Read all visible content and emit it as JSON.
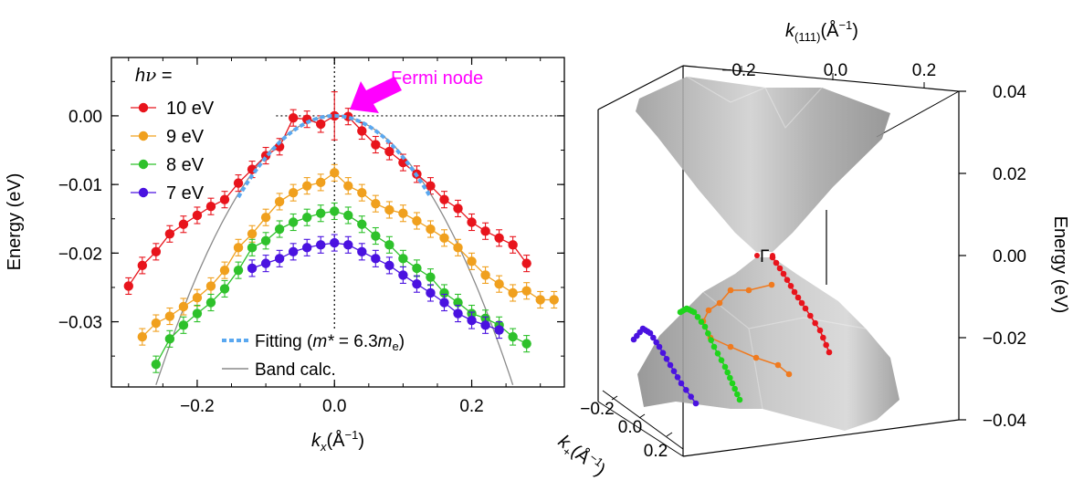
{
  "chart_data": [
    {
      "type": "scatter",
      "xlabel": "k_x(Å⁻¹)",
      "ylabel": "Energy (eV)",
      "xlim": [
        -0.325,
        0.335
      ],
      "ylim": [
        -0.0395,
        0.0085
      ],
      "xticks": [
        -0.2,
        0.0,
        0.2
      ],
      "xtick_labels": [
        "−0.2",
        "0.0",
        "0.2"
      ],
      "yticks": [
        0.0,
        -0.01,
        -0.02,
        -0.03
      ],
      "ytick_labels": [
        "0.00",
        "−0.01",
        "−0.02",
        "−0.03"
      ],
      "legend_title": "hν =",
      "annotation": {
        "text": "Fermi node",
        "color": "#ff00ff",
        "x": 0.0,
        "y": 0.0
      },
      "series": [
        {
          "name": "10 eV",
          "color": "#e8141c",
          "x": [
            -0.3,
            -0.28,
            -0.26,
            -0.24,
            -0.22,
            -0.2,
            -0.18,
            -0.16,
            -0.14,
            -0.12,
            -0.1,
            -0.08,
            -0.06,
            -0.04,
            -0.02,
            0.0,
            0.02,
            0.04,
            0.06,
            0.08,
            0.1,
            0.12,
            0.14,
            0.16,
            0.18,
            0.2,
            0.22,
            0.24,
            0.26,
            0.28
          ],
          "y": [
            -0.0248,
            -0.0218,
            -0.0198,
            -0.0172,
            -0.0158,
            -0.0145,
            -0.0132,
            -0.0122,
            -0.0098,
            -0.0078,
            -0.0058,
            -0.0045,
            -0.0003,
            -0.0005,
            -0.0012,
            0.0,
            -0.0001,
            -0.0022,
            -0.0042,
            -0.0052,
            -0.0068,
            -0.0085,
            -0.0102,
            -0.0122,
            -0.0135,
            -0.0155,
            -0.0168,
            -0.0178,
            -0.0188,
            -0.0215
          ],
          "err": 0.0012,
          "err_center": 0.0035
        },
        {
          "name": "9 eV",
          "color": "#f0a01e",
          "x": [
            -0.28,
            -0.26,
            -0.24,
            -0.22,
            -0.2,
            -0.18,
            -0.16,
            -0.14,
            -0.12,
            -0.1,
            -0.08,
            -0.06,
            -0.04,
            -0.02,
            0.0,
            0.02,
            0.04,
            0.06,
            0.08,
            0.1,
            0.12,
            0.14,
            0.16,
            0.18,
            0.2,
            0.22,
            0.24,
            0.26,
            0.28,
            0.3,
            0.32
          ],
          "y": [
            -0.0322,
            -0.0302,
            -0.0292,
            -0.0278,
            -0.0265,
            -0.0248,
            -0.0225,
            -0.0192,
            -0.0172,
            -0.0148,
            -0.0125,
            -0.0112,
            -0.0102,
            -0.0097,
            -0.0083,
            -0.0102,
            -0.0112,
            -0.0128,
            -0.0137,
            -0.0142,
            -0.0153,
            -0.0165,
            -0.0178,
            -0.0192,
            -0.0212,
            -0.0232,
            -0.0245,
            -0.0258,
            -0.0255,
            -0.0268,
            -0.0268
          ],
          "err": 0.0012
        },
        {
          "name": "8 eV",
          "color": "#2ec12b",
          "x": [
            -0.26,
            -0.24,
            -0.22,
            -0.2,
            -0.18,
            -0.16,
            -0.14,
            -0.12,
            -0.1,
            -0.08,
            -0.06,
            -0.04,
            -0.02,
            0.0,
            0.02,
            0.04,
            0.06,
            0.08,
            0.1,
            0.12,
            0.14,
            0.16,
            0.18,
            0.2,
            0.22,
            0.24,
            0.26,
            0.28
          ],
          "y": [
            -0.0362,
            -0.0325,
            -0.0305,
            -0.0288,
            -0.0272,
            -0.0252,
            -0.0225,
            -0.0192,
            -0.0182,
            -0.0165,
            -0.0155,
            -0.0148,
            -0.0142,
            -0.0139,
            -0.0145,
            -0.0158,
            -0.0175,
            -0.0188,
            -0.0208,
            -0.0222,
            -0.0235,
            -0.0258,
            -0.0272,
            -0.0288,
            -0.0295,
            -0.0305,
            -0.0322,
            -0.0332
          ],
          "err": 0.0012
        },
        {
          "name": "7 eV",
          "color": "#4a12e0",
          "x": [
            -0.12,
            -0.1,
            -0.08,
            -0.06,
            -0.04,
            -0.02,
            0.0,
            0.02,
            0.04,
            0.06,
            0.08,
            0.1,
            0.12,
            0.14,
            0.16,
            0.18,
            0.2,
            0.22,
            0.24
          ],
          "y": [
            -0.0222,
            -0.0215,
            -0.0208,
            -0.0198,
            -0.0192,
            -0.0188,
            -0.0185,
            -0.0188,
            -0.0198,
            -0.0208,
            -0.0218,
            -0.0232,
            -0.0245,
            -0.0258,
            -0.0272,
            -0.0288,
            -0.0298,
            -0.0305,
            -0.0312
          ],
          "err": 0.0012
        }
      ],
      "fit": {
        "label_prefix": "Fitting (",
        "label_var": "m*",
        "label_mid": " = 6.3",
        "label_unit": "m",
        "label_sub": "e",
        "label_suffix": ")",
        "color": "#5aa8f0",
        "curvature": 0.605,
        "x_range": [
          -0.14,
          0.14
        ]
      },
      "band_calc": {
        "label": "Band calc.",
        "color": "#8a8a8a",
        "curvature": 0.58
      }
    },
    {
      "type": "3d-surface",
      "top_axis_label": "k_(111)(Å⁻¹)",
      "top_ticks": [
        "−0.2",
        "0.0",
        "0.2"
      ],
      "right_axis_label": "Energy (eV)",
      "right_ticks": [
        "0.04",
        "0.02",
        "0.00",
        "−0.02",
        "−0.04"
      ],
      "right_tick_values": [
        0.04,
        0.02,
        0.0,
        -0.02,
        -0.04
      ],
      "depth_axis_label": "k_+(Å⁻¹)",
      "depth_ticks": [
        "−0.2",
        "0.0",
        "0.2"
      ],
      "node_label": "Γ",
      "surface_color": "#8c8c8c",
      "trace_colors": {
        "10 eV": "#e8141c",
        "9 eV": "#f07a1e",
        "8 eV": "#1fd41c",
        "7 eV": "#4a12e0"
      }
    }
  ]
}
